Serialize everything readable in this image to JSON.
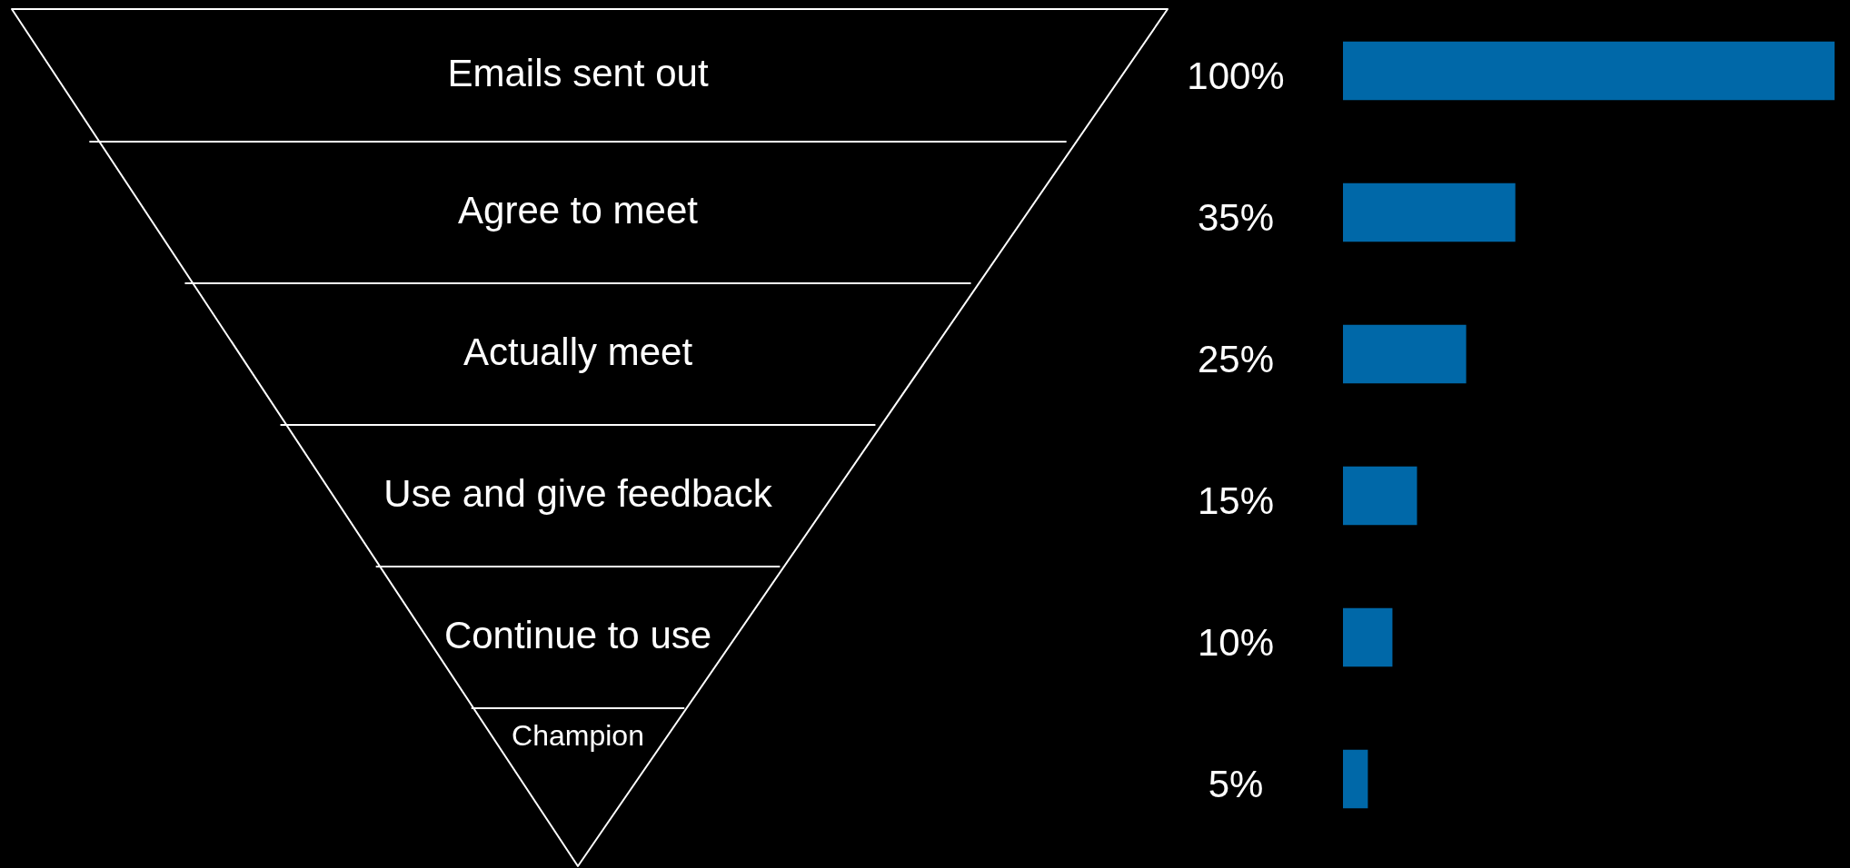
{
  "chart_data": {
    "type": "bar",
    "orientation": "horizontal",
    "categories": [
      "Emails sent out",
      "Agree to meet",
      "Actually meet",
      "Use and give feedback",
      "Continue to use",
      "Champion"
    ],
    "values": [
      100,
      35,
      25,
      15,
      10,
      5
    ],
    "value_labels": [
      "100%",
      "35%",
      "25%",
      "15%",
      "10%",
      "5%"
    ],
    "color": "#0068a8",
    "xlim": [
      0,
      100
    ]
  }
}
